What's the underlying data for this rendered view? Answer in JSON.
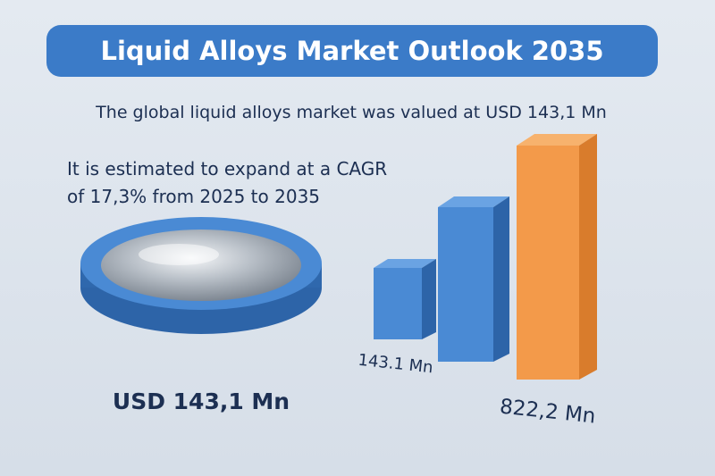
{
  "header": {
    "title": "Liquid Alloys Market Outlook 2035"
  },
  "intro": "The global liquid alloys market was valued at USD 143,1 Mn",
  "growth": {
    "line1": "It is estimated to expand at a CAGR",
    "line2": "of 17,3% from 2025 to 2035"
  },
  "dish_label": "USD 143,1 Mn",
  "bar_labels": {
    "start": "143.1 Mn",
    "end": "822,2 Mn"
  }
}
